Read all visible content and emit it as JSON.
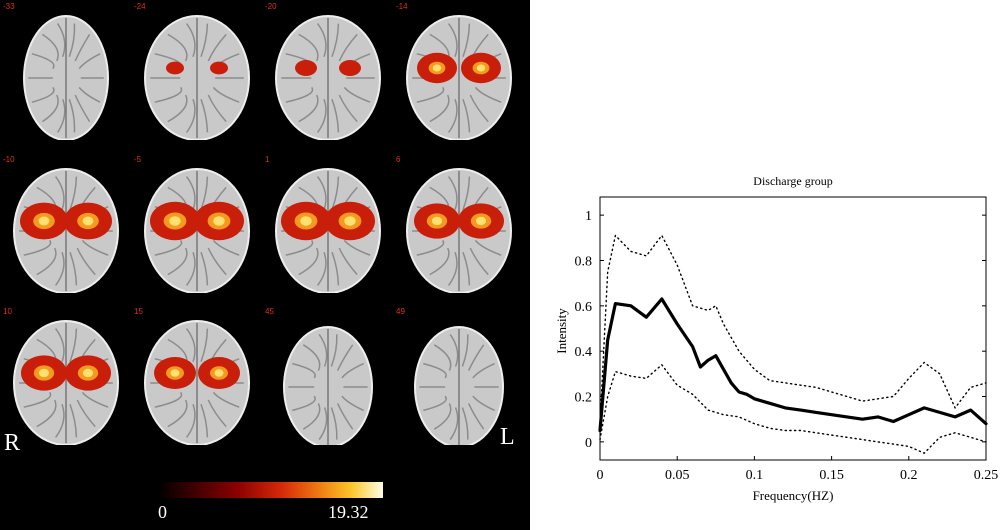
{
  "figure": {
    "brain_panel": {
      "slices": [
        {
          "label": "-33"
        },
        {
          "label": "-24"
        },
        {
          "label": "-20"
        },
        {
          "label": "-14"
        },
        {
          "label": "-10"
        },
        {
          "label": "-5"
        },
        {
          "label": "1"
        },
        {
          "label": "6"
        },
        {
          "label": "10"
        },
        {
          "label": "15"
        },
        {
          "label": "45"
        },
        {
          "label": "49"
        }
      ],
      "orientation_right": "R",
      "orientation_left": "L",
      "colorbar": {
        "min_label": "0",
        "max_label": "19.32"
      },
      "colors": {
        "background": "#000000",
        "slice_label": "#e03020",
        "activation_low": "#c81e0a",
        "activation_high": "#ffe070"
      }
    }
  },
  "chart_data": {
    "type": "line",
    "title": "Discharge group",
    "xlabel": "Frequency(HZ)",
    "ylabel": "Intensity",
    "xlim": [
      0,
      0.25
    ],
    "ylim": [
      -0.08,
      1.08
    ],
    "x_ticks": [
      "0",
      "0.05",
      "0.1",
      "0.15",
      "0.2",
      "0.25"
    ],
    "y_ticks": [
      "0",
      "0.2",
      "0.4",
      "0.6",
      "0.8",
      "1"
    ],
    "series": [
      {
        "style": "solid",
        "x": [
          0,
          0.005,
          0.01,
          0.02,
          0.03,
          0.04,
          0.05,
          0.06,
          0.065,
          0.07,
          0.075,
          0.08,
          0.085,
          0.09,
          0.095,
          0.1,
          0.11,
          0.12,
          0.13,
          0.14,
          0.15,
          0.16,
          0.17,
          0.18,
          0.19,
          0.2,
          0.21,
          0.22,
          0.23,
          0.24,
          0.25
        ],
        "values": [
          0.05,
          0.45,
          0.61,
          0.6,
          0.55,
          0.63,
          0.52,
          0.42,
          0.33,
          0.36,
          0.38,
          0.32,
          0.26,
          0.22,
          0.21,
          0.19,
          0.17,
          0.15,
          0.14,
          0.13,
          0.12,
          0.11,
          0.1,
          0.11,
          0.09,
          0.12,
          0.15,
          0.13,
          0.11,
          0.14,
          0.08
        ]
      },
      {
        "style": "dotted",
        "x": [
          0,
          0.005,
          0.01,
          0.02,
          0.03,
          0.04,
          0.05,
          0.06,
          0.07,
          0.075,
          0.08,
          0.09,
          0.1,
          0.11,
          0.12,
          0.13,
          0.14,
          0.15,
          0.16,
          0.17,
          0.18,
          0.19,
          0.2,
          0.21,
          0.22,
          0.23,
          0.24,
          0.25
        ],
        "values": [
          0.08,
          0.75,
          0.91,
          0.84,
          0.82,
          0.91,
          0.78,
          0.6,
          0.58,
          0.6,
          0.52,
          0.4,
          0.32,
          0.27,
          0.26,
          0.25,
          0.24,
          0.22,
          0.2,
          0.18,
          0.19,
          0.2,
          0.28,
          0.35,
          0.3,
          0.15,
          0.24,
          0.26
        ]
      },
      {
        "style": "dotted",
        "x": [
          0,
          0.005,
          0.01,
          0.02,
          0.03,
          0.04,
          0.05,
          0.06,
          0.07,
          0.08,
          0.09,
          0.1,
          0.11,
          0.12,
          0.13,
          0.14,
          0.15,
          0.16,
          0.17,
          0.18,
          0.19,
          0.2,
          0.21,
          0.22,
          0.23,
          0.24,
          0.25
        ],
        "values": [
          0.01,
          0.2,
          0.31,
          0.29,
          0.28,
          0.34,
          0.25,
          0.21,
          0.14,
          0.12,
          0.11,
          0.08,
          0.06,
          0.05,
          0.05,
          0.04,
          0.03,
          0.02,
          0.01,
          0.0,
          -0.01,
          -0.02,
          -0.05,
          0.02,
          0.04,
          0.02,
          0.0
        ]
      }
    ],
    "grid": false,
    "colors": {
      "line": "#000000"
    }
  }
}
